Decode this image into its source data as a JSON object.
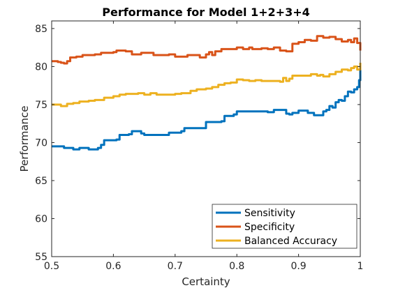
{
  "chart_data": {
    "type": "line",
    "title": "Performance for Model 1+2+3+4",
    "xlabel": "Certainty",
    "ylabel": "Performance",
    "xlim": [
      0.5,
      1.0
    ],
    "ylim": [
      55,
      86
    ],
    "xticks": [
      0.5,
      0.6,
      0.7,
      0.8,
      0.9,
      1.0
    ],
    "xtick_labels": [
      "0.5",
      "0.6",
      "0.7",
      "0.8",
      "0.9",
      "1"
    ],
    "yticks": [
      55,
      60,
      65,
      70,
      75,
      80,
      85
    ],
    "ytick_labels": [
      "55",
      "60",
      "65",
      "70",
      "75",
      "80",
      "85"
    ],
    "grid": false,
    "legend_position": "bottom-right",
    "series": [
      {
        "name": "Sensitivity",
        "color": "#0072BD",
        "points": [
          [
            0.5,
            69.5
          ],
          [
            0.515,
            69.5
          ],
          [
            0.52,
            69.3
          ],
          [
            0.535,
            69.1
          ],
          [
            0.545,
            69.3
          ],
          [
            0.555,
            69.3
          ],
          [
            0.56,
            69.1
          ],
          [
            0.575,
            69.3
          ],
          [
            0.58,
            69.7
          ],
          [
            0.585,
            70.3
          ],
          [
            0.605,
            70.4
          ],
          [
            0.61,
            71.0
          ],
          [
            0.625,
            71.1
          ],
          [
            0.63,
            71.5
          ],
          [
            0.645,
            71.2
          ],
          [
            0.65,
            71.0
          ],
          [
            0.68,
            71.0
          ],
          [
            0.69,
            71.3
          ],
          [
            0.71,
            71.5
          ],
          [
            0.715,
            71.9
          ],
          [
            0.745,
            71.9
          ],
          [
            0.75,
            72.7
          ],
          [
            0.775,
            72.8
          ],
          [
            0.78,
            73.5
          ],
          [
            0.795,
            73.7
          ],
          [
            0.8,
            74.1
          ],
          [
            0.85,
            74.0
          ],
          [
            0.86,
            74.3
          ],
          [
            0.875,
            74.3
          ],
          [
            0.88,
            73.8
          ],
          [
            0.885,
            73.7
          ],
          [
            0.89,
            73.9
          ],
          [
            0.9,
            74.2
          ],
          [
            0.915,
            73.9
          ],
          [
            0.925,
            73.6
          ],
          [
            0.935,
            73.6
          ],
          [
            0.94,
            74.1
          ],
          [
            0.945,
            74.3
          ],
          [
            0.95,
            74.8
          ],
          [
            0.955,
            74.6
          ],
          [
            0.96,
            75.3
          ],
          [
            0.965,
            75.6
          ],
          [
            0.97,
            75.5
          ],
          [
            0.975,
            76.1
          ],
          [
            0.98,
            76.7
          ],
          [
            0.985,
            76.6
          ],
          [
            0.99,
            77.0
          ],
          [
            0.995,
            77.3
          ],
          [
            0.998,
            78.2
          ],
          [
            1.0,
            80.3
          ]
        ]
      },
      {
        "name": "Specificity",
        "color": "#D95319",
        "points": [
          [
            0.5,
            80.7
          ],
          [
            0.51,
            80.6
          ],
          [
            0.515,
            80.5
          ],
          [
            0.52,
            80.4
          ],
          [
            0.525,
            80.7
          ],
          [
            0.53,
            81.2
          ],
          [
            0.54,
            81.3
          ],
          [
            0.55,
            81.5
          ],
          [
            0.57,
            81.6
          ],
          [
            0.58,
            81.8
          ],
          [
            0.6,
            81.9
          ],
          [
            0.605,
            82.1
          ],
          [
            0.62,
            82.0
          ],
          [
            0.63,
            81.6
          ],
          [
            0.64,
            81.6
          ],
          [
            0.645,
            81.8
          ],
          [
            0.66,
            81.8
          ],
          [
            0.665,
            81.5
          ],
          [
            0.69,
            81.6
          ],
          [
            0.7,
            81.3
          ],
          [
            0.72,
            81.5
          ],
          [
            0.74,
            81.2
          ],
          [
            0.75,
            81.6
          ],
          [
            0.755,
            81.9
          ],
          [
            0.76,
            81.5
          ],
          [
            0.765,
            82.0
          ],
          [
            0.775,
            82.3
          ],
          [
            0.79,
            82.3
          ],
          [
            0.8,
            82.5
          ],
          [
            0.81,
            82.3
          ],
          [
            0.82,
            82.5
          ],
          [
            0.825,
            82.3
          ],
          [
            0.84,
            82.4
          ],
          [
            0.85,
            82.3
          ],
          [
            0.86,
            82.5
          ],
          [
            0.87,
            82.1
          ],
          [
            0.88,
            82.0
          ],
          [
            0.89,
            83.0
          ],
          [
            0.9,
            83.2
          ],
          [
            0.91,
            83.5
          ],
          [
            0.92,
            83.4
          ],
          [
            0.93,
            84.0
          ],
          [
            0.94,
            83.8
          ],
          [
            0.95,
            83.9
          ],
          [
            0.96,
            83.6
          ],
          [
            0.97,
            83.3
          ],
          [
            0.98,
            83.5
          ],
          [
            0.985,
            83.2
          ],
          [
            0.99,
            83.7
          ],
          [
            0.995,
            83.1
          ],
          [
            1.0,
            82.1
          ]
        ]
      },
      {
        "name": "Balanced Accuracy",
        "color": "#EDB120",
        "points": [
          [
            0.5,
            75.0
          ],
          [
            0.51,
            75.0
          ],
          [
            0.515,
            74.8
          ],
          [
            0.525,
            75.1
          ],
          [
            0.535,
            75.2
          ],
          [
            0.545,
            75.4
          ],
          [
            0.56,
            75.5
          ],
          [
            0.57,
            75.6
          ],
          [
            0.575,
            75.6
          ],
          [
            0.585,
            75.9
          ],
          [
            0.6,
            76.1
          ],
          [
            0.61,
            76.3
          ],
          [
            0.62,
            76.4
          ],
          [
            0.63,
            76.4
          ],
          [
            0.64,
            76.5
          ],
          [
            0.65,
            76.3
          ],
          [
            0.66,
            76.5
          ],
          [
            0.67,
            76.3
          ],
          [
            0.69,
            76.3
          ],
          [
            0.7,
            76.4
          ],
          [
            0.71,
            76.5
          ],
          [
            0.72,
            76.5
          ],
          [
            0.725,
            76.8
          ],
          [
            0.735,
            77.0
          ],
          [
            0.75,
            77.1
          ],
          [
            0.76,
            77.3
          ],
          [
            0.77,
            77.6
          ],
          [
            0.78,
            77.8
          ],
          [
            0.79,
            77.9
          ],
          [
            0.8,
            78.3
          ],
          [
            0.81,
            78.2
          ],
          [
            0.82,
            78.1
          ],
          [
            0.83,
            78.2
          ],
          [
            0.84,
            78.1
          ],
          [
            0.85,
            78.1
          ],
          [
            0.86,
            78.1
          ],
          [
            0.87,
            78.0
          ],
          [
            0.875,
            78.5
          ],
          [
            0.88,
            78.1
          ],
          [
            0.885,
            78.4
          ],
          [
            0.89,
            78.8
          ],
          [
            0.9,
            78.8
          ],
          [
            0.91,
            78.8
          ],
          [
            0.92,
            79.0
          ],
          [
            0.93,
            78.8
          ],
          [
            0.935,
            78.9
          ],
          [
            0.94,
            78.7
          ],
          [
            0.95,
            79.0
          ],
          [
            0.96,
            79.3
          ],
          [
            0.97,
            79.6
          ],
          [
            0.98,
            79.5
          ],
          [
            0.985,
            79.8
          ],
          [
            0.99,
            80.0
          ],
          [
            0.995,
            79.6
          ],
          [
            1.0,
            80.5
          ]
        ]
      }
    ]
  }
}
